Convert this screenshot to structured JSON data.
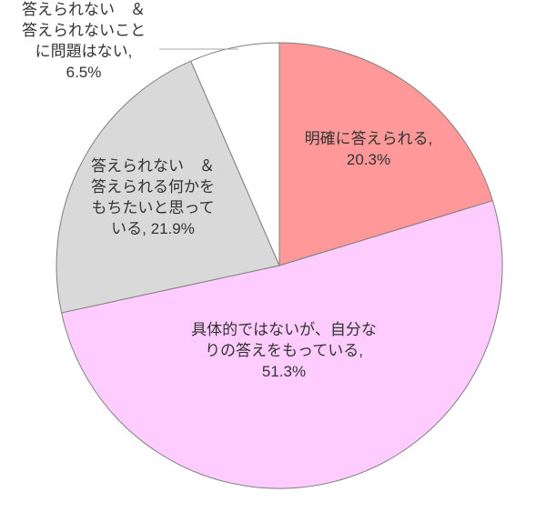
{
  "chart_data": {
    "type": "pie",
    "slices": [
      {
        "label_lines": [
          "明確に答えられる,",
          "20.3%"
        ],
        "value": 20.3,
        "color": "#ff9999"
      },
      {
        "label_lines": [
          "具体的ではないが、自分な",
          "りの答えをもっている,",
          "51.3%"
        ],
        "value": 51.3,
        "color": "#ffccff"
      },
      {
        "label_lines": [
          "答えられない　＆",
          "答えられる何かを",
          "もちたいと思って",
          "いる, 21.9%"
        ],
        "value": 21.9,
        "color": "#d9d9d9"
      },
      {
        "label_lines": [
          "答えられない　＆",
          "答えられないこと",
          "に問題はない,",
          "6.5%"
        ],
        "value": 6.5,
        "color": "#ffffff"
      }
    ],
    "start": "top (12 o'clock)",
    "direction": "clockwise",
    "legend": "none",
    "border_color": "#7f7f7f"
  }
}
